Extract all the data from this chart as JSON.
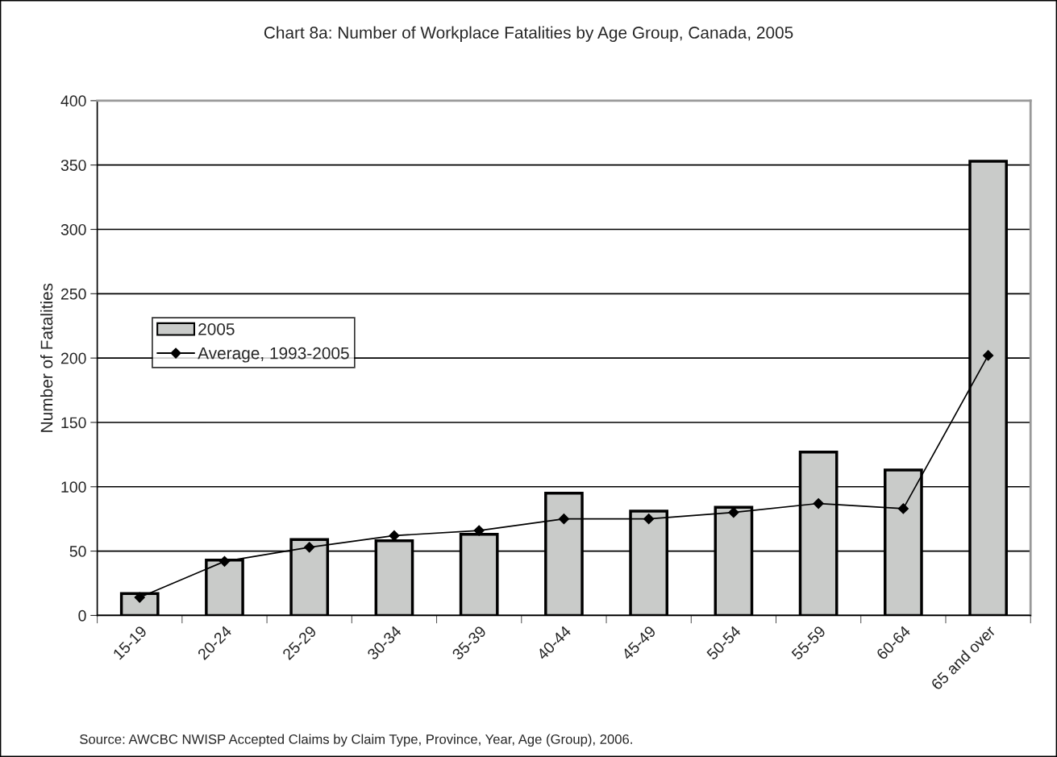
{
  "chart_data": {
    "type": "bar",
    "title": "Chart 8a: Number of Workplace Fatalities by Age Group, Canada, 2005",
    "ylabel": "Number of Fatalities",
    "categories": [
      "15-19",
      "20-24",
      "25-29",
      "30-34",
      "35-39",
      "40-44",
      "45-49",
      "50-54",
      "55-59",
      "60-64",
      "65 and over"
    ],
    "series": [
      {
        "name": "2005",
        "color": "#c9cbc9",
        "values": [
          17,
          43,
          59,
          58,
          63,
          95,
          81,
          84,
          127,
          113,
          353
        ]
      },
      {
        "name": "Average, 1993-2005",
        "type": "line",
        "color": "#000000",
        "marker": "diamond",
        "values": [
          14,
          42,
          53,
          62,
          66,
          75,
          75,
          80,
          87,
          83,
          202
        ]
      }
    ],
    "ylim": [
      0,
      400
    ],
    "yticks": [
      0,
      50,
      100,
      150,
      200,
      250,
      300,
      350,
      400
    ],
    "grid": "y",
    "legend": "center left",
    "annotations": [
      "Source: AWCBC NWISP Accepted Claims by Claim Type, Province, Year, Age (Group), 2006."
    ]
  }
}
